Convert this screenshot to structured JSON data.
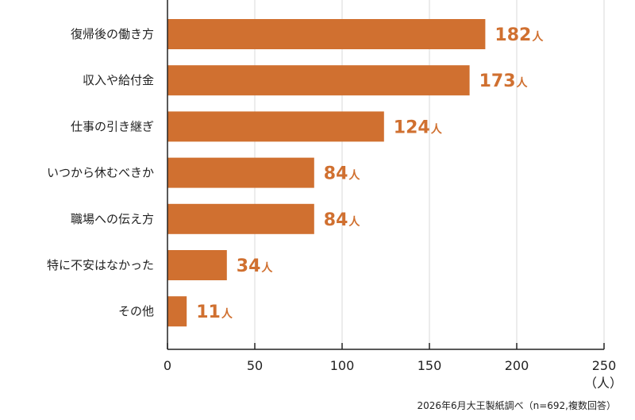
{
  "chart_data": {
    "type": "bar",
    "orientation": "horizontal",
    "categories": [
      "復帰後の働き方",
      "収入や給付金",
      "仕事の引き継ぎ",
      "いつから休むべきか",
      "職場への伝え方",
      "特に不安はなかった",
      "その他"
    ],
    "values": [
      182,
      173,
      124,
      84,
      84,
      34,
      11
    ],
    "data_label_unit": "人",
    "xlim": [
      0,
      250
    ],
    "x_ticks": [
      0,
      50,
      100,
      150,
      200,
      250
    ],
    "x_unit_label": "（人）",
    "grid": true,
    "bar_color": "#d07030",
    "label_color": "#d07030",
    "grid_color": "#d8d8d8",
    "axis_color": "#222222"
  },
  "source_note": "2026年6月大王製紙調べ（n=692,複数回答）"
}
